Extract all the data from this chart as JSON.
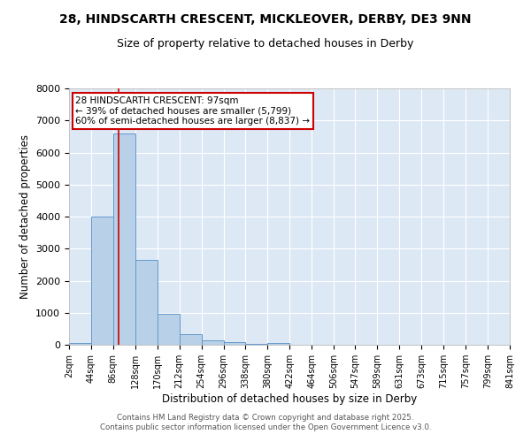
{
  "title": "28, HINDSCARTH CRESCENT, MICKLEOVER, DERBY, DE3 9NN",
  "subtitle": "Size of property relative to detached houses in Derby",
  "xlabel": "Distribution of detached houses by size in Derby",
  "ylabel": "Number of detached properties",
  "bar_color": "#b8d0e8",
  "bar_edge_color": "#6699cc",
  "background_color": "#dde8f5",
  "grid_color": "#ffffff",
  "vline_color": "#cc0000",
  "vline_x": 97,
  "bin_edges": [
    2,
    44,
    86,
    128,
    170,
    212,
    254,
    296,
    338,
    380,
    422,
    464,
    506,
    547,
    589,
    631,
    673,
    715,
    757,
    799,
    841
  ],
  "bar_heights": [
    60,
    4000,
    6600,
    2650,
    960,
    340,
    140,
    70,
    40,
    60,
    0,
    0,
    0,
    0,
    0,
    0,
    0,
    0,
    0,
    0
  ],
  "annotation_text": "28 HINDSCARTH CRESCENT: 97sqm\n← 39% of detached houses are smaller (5,799)\n60% of semi-detached houses are larger (8,837) →",
  "annotation_box_color": "#ffffff",
  "annotation_box_edge_color": "#cc0000",
  "footer_text": "Contains HM Land Registry data © Crown copyright and database right 2025.\nContains public sector information licensed under the Open Government Licence v3.0.",
  "ylim": [
    0,
    8000
  ],
  "yticks": [
    0,
    1000,
    2000,
    3000,
    4000,
    5000,
    6000,
    7000,
    8000
  ],
  "fig_width": 6.0,
  "fig_height": 5.0,
  "dpi": 100
}
